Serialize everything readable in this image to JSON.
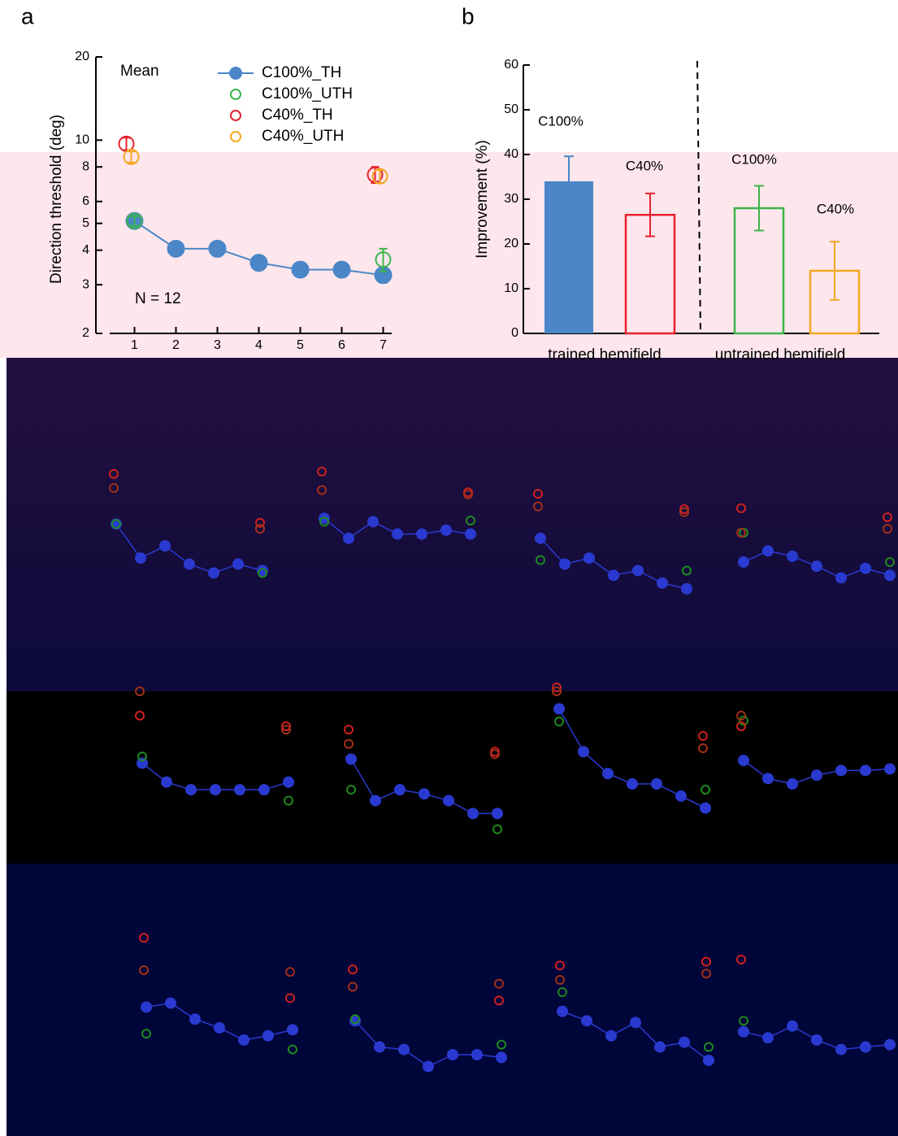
{
  "chart_data": [
    {
      "type": "line",
      "panel_label": "a",
      "annotations": [
        "Mean",
        "N = 12"
      ],
      "ylabel": "Direction threshold (deg)",
      "x": [
        1,
        2,
        3,
        4,
        5,
        6,
        7
      ],
      "xlim": [
        0.5,
        7.2
      ],
      "xticks": [
        1,
        2,
        3,
        4,
        5,
        6,
        7
      ],
      "ylim": [
        2,
        20
      ],
      "yticks": [
        2,
        3,
        4,
        5,
        6,
        8,
        10,
        20
      ],
      "log_y": true,
      "series": [
        {
          "name": "C100%_TH",
          "color": "#4a86c8",
          "marker": "filled",
          "line": true,
          "values": [
            5.1,
            4.05,
            4.05,
            3.6,
            3.4,
            3.4,
            3.25
          ],
          "errors": [
            0.2,
            0.2,
            0.25,
            0.22,
            0.18,
            0.2,
            0.2
          ]
        },
        {
          "name": "C100%_UTH",
          "color": "#3cb44b",
          "marker": "open",
          "line": false,
          "values": [
            5.1,
            null,
            null,
            null,
            null,
            null,
            3.7
          ],
          "errors": [
            0.2,
            null,
            null,
            null,
            null,
            null,
            0.35
          ]
        },
        {
          "name": "C40%_TH",
          "color": "#e8212e",
          "marker": "open",
          "line": false,
          "values": [
            9.7,
            null,
            null,
            null,
            null,
            null,
            7.5
          ],
          "errors": [
            0.5,
            null,
            null,
            null,
            null,
            null,
            0.5
          ]
        },
        {
          "name": "C40%_UTH",
          "color": "#f5a623",
          "marker": "open",
          "line": false,
          "values": [
            8.7,
            null,
            null,
            null,
            null,
            null,
            7.4
          ],
          "errors": [
            0.4,
            null,
            null,
            null,
            null,
            null,
            0.4
          ]
        }
      ]
    },
    {
      "type": "bar",
      "panel_label": "b",
      "ylabel": "Improvement (%)",
      "groups": [
        "trained hemifield",
        "untrained hemifield"
      ],
      "categories": [
        "C100%",
        "C40%",
        "C100%",
        "C40%"
      ],
      "values": [
        34,
        26.5,
        28,
        14
      ],
      "errors": [
        5.6,
        4.8,
        5,
        6.5
      ],
      "colors": [
        "#4a86c8",
        "#e8212e",
        "#3cb44b",
        "#f5a623"
      ],
      "filled": [
        true,
        false,
        false,
        false
      ],
      "ylim": [
        0,
        60
      ],
      "yticks": [
        0,
        10,
        20,
        30,
        40,
        50,
        60
      ]
    },
    {
      "type": "line",
      "x": [
        1,
        2,
        3,
        4,
        5,
        6,
        7
      ],
      "ylim": [
        1,
        20
      ],
      "log_y": true,
      "series": [
        {
          "color": "#2a3ad0",
          "line": true,
          "marker": "filled",
          "values": [
            6.0,
            3.7,
            4.4,
            3.4,
            3.0,
            3.4,
            3.1
          ]
        },
        {
          "color": "#1e8a1e",
          "marker": "open",
          "values": [
            6.0,
            null,
            null,
            null,
            null,
            null,
            3.0
          ]
        },
        {
          "color": "#d02020",
          "marker": "open",
          "values": [
            12.2,
            null,
            null,
            null,
            null,
            null,
            6.1
          ]
        },
        {
          "color": "#a03018",
          "marker": "open",
          "values": [
            10,
            null,
            null,
            null,
            null,
            null,
            5.6
          ]
        }
      ]
    },
    {
      "type": "line",
      "x": [
        1,
        2,
        3,
        4,
        5,
        6,
        7
      ],
      "ylim": [
        1,
        20
      ],
      "log_y": true,
      "series": [
        {
          "color": "#2a3ad0",
          "line": true,
          "marker": "filled",
          "values": [
            6.5,
            4.9,
            6.2,
            5.2,
            5.2,
            5.5,
            5.2
          ]
        },
        {
          "color": "#1e8a1e",
          "marker": "open",
          "values": [
            6.2,
            null,
            null,
            null,
            null,
            null,
            6.3
          ]
        },
        {
          "color": "#d02020",
          "marker": "open",
          "values": [
            12.6,
            null,
            null,
            null,
            null,
            null,
            9.4
          ]
        },
        {
          "color": "#a03018",
          "marker": "open",
          "values": [
            9.7,
            null,
            null,
            null,
            null,
            null,
            9.1
          ]
        }
      ]
    },
    {
      "type": "line",
      "x": [
        1,
        2,
        3,
        4,
        5,
        6,
        7
      ],
      "ylim": [
        1,
        20
      ],
      "log_y": true,
      "series": [
        {
          "color": "#2a3ad0",
          "line": true,
          "marker": "filled",
          "values": [
            4.9,
            3.4,
            3.7,
            2.9,
            3.1,
            2.6,
            2.4
          ]
        },
        {
          "color": "#1e8a1e",
          "marker": "open",
          "values": [
            3.6,
            null,
            null,
            null,
            null,
            null,
            3.1
          ]
        },
        {
          "color": "#d02020",
          "marker": "open",
          "values": [
            9.2,
            null,
            null,
            null,
            null,
            null,
            7.4
          ]
        },
        {
          "color": "#a03018",
          "marker": "open",
          "values": [
            7.7,
            null,
            null,
            null,
            null,
            null,
            7.1
          ]
        }
      ]
    },
    {
      "type": "line",
      "x": [
        1,
        2,
        3,
        4,
        5,
        6,
        7
      ],
      "ylim": [
        1,
        20
      ],
      "log_y": true,
      "series": [
        {
          "color": "#2a3ad0",
          "line": true,
          "marker": "filled",
          "values": [
            3.5,
            4.1,
            3.8,
            3.3,
            2.8,
            3.2,
            2.9
          ]
        },
        {
          "color": "#1e8a1e",
          "marker": "open",
          "values": [
            5.3,
            null,
            null,
            null,
            null,
            null,
            3.5
          ]
        },
        {
          "color": "#d02020",
          "marker": "open",
          "values": [
            7.5,
            null,
            null,
            null,
            null,
            null,
            6.6
          ]
        },
        {
          "color": "#a03018",
          "marker": "open",
          "values": [
            5.3,
            null,
            null,
            null,
            null,
            null,
            5.6
          ]
        }
      ]
    },
    {
      "type": "line",
      "x": [
        1,
        2,
        3,
        4,
        5,
        6,
        7
      ],
      "ylim": [
        1,
        20
      ],
      "log_y": true,
      "series": [
        {
          "color": "#2a3ad0",
          "line": true,
          "marker": "filled",
          "values": [
            5.1,
            3.9,
            3.5,
            3.5,
            3.5,
            3.5,
            3.9
          ]
        },
        {
          "color": "#1e8a1e",
          "marker": "open",
          "values": [
            5.6,
            null,
            null,
            null,
            null,
            null,
            3.0
          ]
        },
        {
          "color": "#d02020",
          "marker": "open",
          "values": [
            10,
            null,
            null,
            null,
            null,
            null,
            8.6
          ]
        },
        {
          "color": "#a03018",
          "marker": "open",
          "values": [
            14.1,
            null,
            null,
            null,
            null,
            null,
            8.2
          ]
        }
      ]
    },
    {
      "type": "line",
      "x": [
        1,
        2,
        3,
        4,
        5,
        6,
        7
      ],
      "ylim": [
        1,
        20
      ],
      "log_y": true,
      "series": [
        {
          "color": "#2a3ad0",
          "line": true,
          "marker": "filled",
          "values": [
            5.4,
            3.0,
            3.5,
            3.3,
            3.0,
            2.5,
            2.5
          ]
        },
        {
          "color": "#1e8a1e",
          "marker": "open",
          "values": [
            3.5,
            null,
            null,
            null,
            null,
            null,
            2.0
          ]
        },
        {
          "color": "#d02020",
          "marker": "open",
          "values": [
            8.2,
            null,
            null,
            null,
            null,
            null,
            6.0
          ]
        },
        {
          "color": "#a03018",
          "marker": "open",
          "values": [
            6.7,
            null,
            null,
            null,
            null,
            null,
            5.8
          ]
        }
      ]
    },
    {
      "type": "line",
      "x": [
        1,
        2,
        3,
        4,
        5,
        6,
        7
      ],
      "ylim": [
        1,
        20
      ],
      "log_y": true,
      "series": [
        {
          "color": "#2a3ad0",
          "line": true,
          "marker": "filled",
          "values": [
            11.0,
            6.0,
            4.4,
            3.8,
            3.8,
            3.2,
            2.7
          ]
        },
        {
          "color": "#1e8a1e",
          "marker": "open",
          "values": [
            9.2,
            null,
            null,
            null,
            null,
            null,
            3.5
          ]
        },
        {
          "color": "#d02020",
          "marker": "open",
          "values": [
            14.9,
            null,
            null,
            null,
            null,
            null,
            7.5
          ]
        },
        {
          "color": "#a03018",
          "marker": "open",
          "values": [
            14.1,
            null,
            null,
            null,
            null,
            null,
            6.3
          ]
        }
      ]
    },
    {
      "type": "line",
      "x": [
        1,
        2,
        3,
        4,
        5,
        6,
        7
      ],
      "ylim": [
        1,
        20
      ],
      "log_y": true,
      "series": [
        {
          "color": "#2a3ad0",
          "line": true,
          "marker": "filled",
          "values": [
            5.3,
            4.1,
            3.8,
            4.3,
            4.6,
            4.6,
            4.7
          ]
        },
        {
          "color": "#1e8a1e",
          "marker": "open",
          "values": [
            9.3,
            null,
            null,
            null,
            null,
            null,
            null
          ]
        },
        {
          "color": "#d02020",
          "marker": "open",
          "values": [
            8.6,
            null,
            null,
            null,
            null,
            null,
            null
          ]
        },
        {
          "color": "#a03018",
          "marker": "open",
          "values": [
            10,
            null,
            null,
            null,
            null,
            null,
            null
          ]
        }
      ]
    },
    {
      "type": "line",
      "x": [
        1,
        2,
        3,
        4,
        5,
        6,
        7
      ],
      "ylim": [
        1,
        20
      ],
      "log_y": true,
      "series": [
        {
          "color": "#2a3ad0",
          "line": true,
          "marker": "filled",
          "values": [
            5.1,
            5.4,
            4.3,
            3.8,
            3.2,
            3.4,
            3.7
          ]
        },
        {
          "color": "#1e8a1e",
          "marker": "open",
          "values": [
            3.5,
            null,
            null,
            null,
            null,
            null,
            2.8
          ]
        },
        {
          "color": "#d02020",
          "marker": "open",
          "values": [
            13.6,
            null,
            null,
            null,
            null,
            null,
            5.8
          ]
        },
        {
          "color": "#a03018",
          "marker": "open",
          "values": [
            8.6,
            null,
            null,
            null,
            null,
            null,
            8.4
          ]
        }
      ]
    },
    {
      "type": "line",
      "x": [
        1,
        2,
        3,
        4,
        5,
        6,
        7
      ],
      "ylim": [
        1,
        20
      ],
      "log_y": true,
      "series": [
        {
          "color": "#2a3ad0",
          "line": true,
          "marker": "filled",
          "values": [
            4.2,
            2.9,
            2.8,
            2.2,
            2.6,
            2.6,
            2.5
          ]
        },
        {
          "color": "#1e8a1e",
          "marker": "open",
          "values": [
            4.3,
            null,
            null,
            null,
            null,
            null,
            3.0
          ]
        },
        {
          "color": "#d02020",
          "marker": "open",
          "values": [
            8.7,
            null,
            null,
            null,
            null,
            null,
            5.6
          ]
        },
        {
          "color": "#a03018",
          "marker": "open",
          "values": [
            6.8,
            null,
            null,
            null,
            null,
            null,
            7.1
          ]
        }
      ]
    },
    {
      "type": "line",
      "x": [
        1,
        2,
        3,
        4,
        5,
        6,
        7
      ],
      "ylim": [
        1,
        20
      ],
      "log_y": true,
      "series": [
        {
          "color": "#2a3ad0",
          "line": true,
          "marker": "filled",
          "values": [
            4.8,
            4.2,
            3.4,
            4.1,
            2.9,
            3.1,
            2.4
          ]
        },
        {
          "color": "#1e8a1e",
          "marker": "open",
          "values": [
            6.3,
            null,
            null,
            null,
            null,
            null,
            2.9
          ]
        },
        {
          "color": "#d02020",
          "marker": "open",
          "values": [
            9.2,
            null,
            null,
            null,
            null,
            null,
            9.7
          ]
        },
        {
          "color": "#a03018",
          "marker": "open",
          "values": [
            7.5,
            null,
            null,
            null,
            null,
            null,
            8.2
          ]
        }
      ]
    },
    {
      "type": "line",
      "x": [
        1,
        2,
        3,
        4,
        5,
        6,
        7
      ],
      "ylim": [
        1,
        20
      ],
      "log_y": true,
      "series": [
        {
          "color": "#2a3ad0",
          "line": true,
          "marker": "filled",
          "values": [
            3.6,
            3.3,
            3.9,
            3.2,
            2.8,
            2.9,
            3.0
          ]
        },
        {
          "color": "#1e8a1e",
          "marker": "open",
          "values": [
            4.2,
            null,
            null,
            null,
            null,
            null,
            null
          ]
        },
        {
          "color": "#d02020",
          "marker": "open",
          "values": [
            10,
            null,
            null,
            null,
            null,
            null,
            null
          ]
        },
        {
          "color": "#a03018",
          "marker": "open",
          "values": [
            null,
            null,
            null,
            null,
            null,
            null,
            null
          ]
        }
      ]
    }
  ]
}
